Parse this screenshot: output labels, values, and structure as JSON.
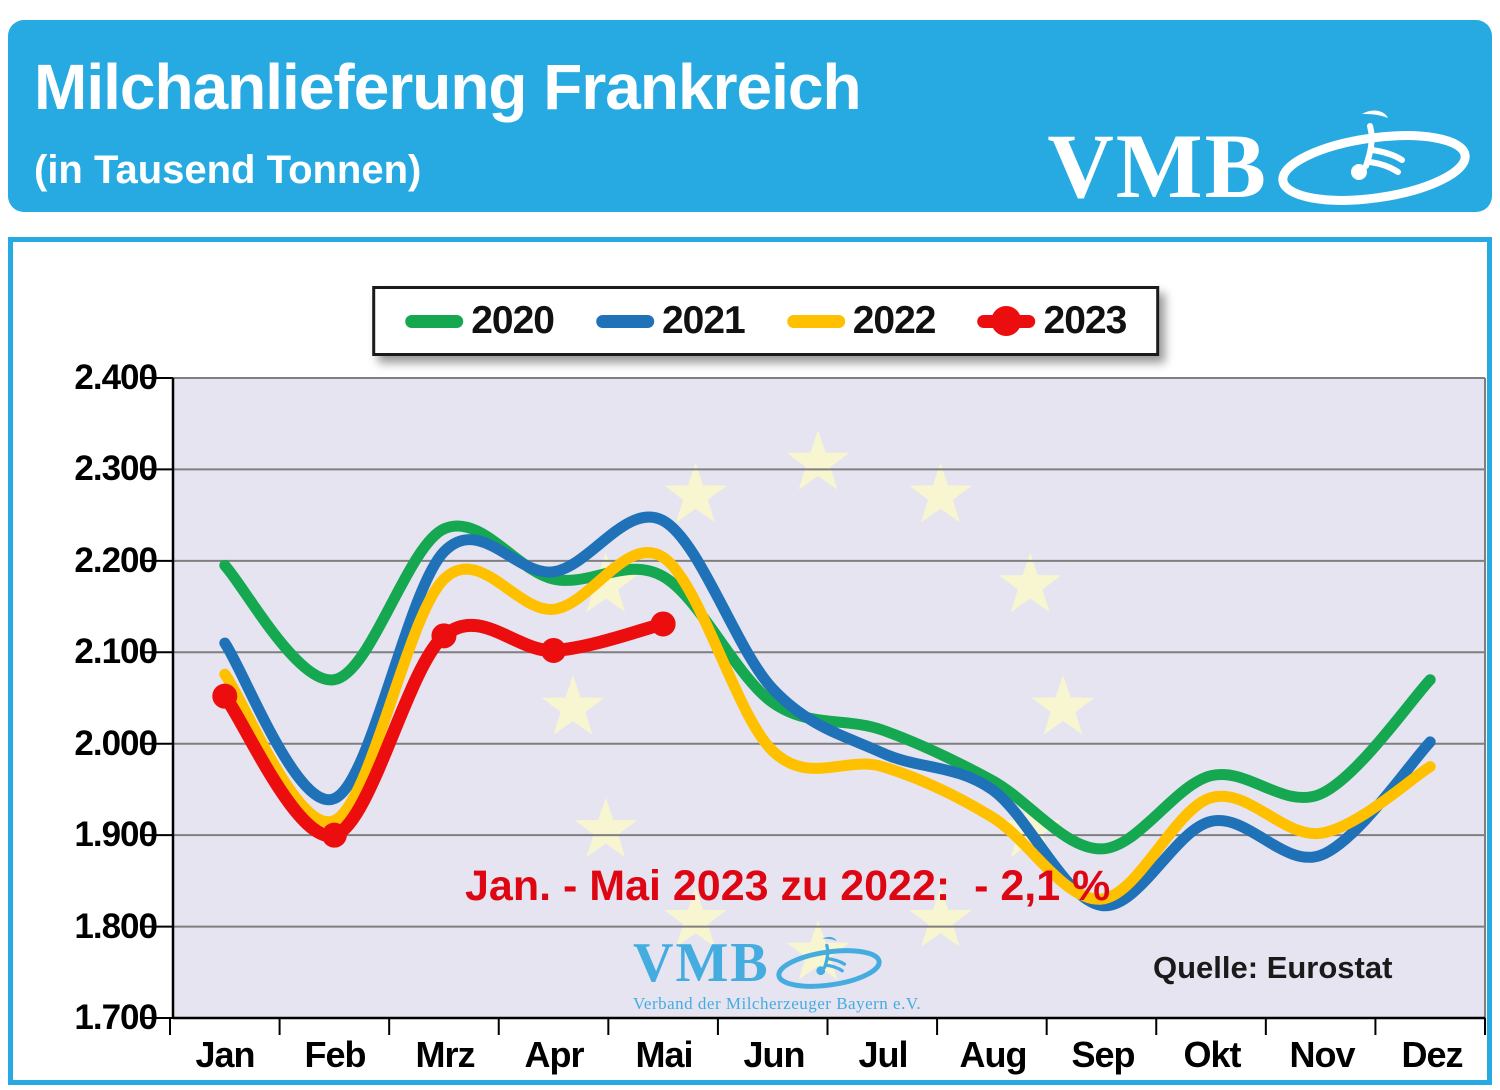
{
  "header": {
    "title": "Milchanlieferung Frankreich",
    "subtitle": "(in Tausend Tonnen)",
    "logo_text": "VMB"
  },
  "chart": {
    "y_labels": [
      "2.400",
      "2.300",
      "2.200",
      "2.100",
      "2.000",
      "1.900",
      "1.800",
      "1.700"
    ],
    "months": [
      "Jan",
      "Feb",
      "Mrz",
      "Apr",
      "Mai",
      "Jun",
      "Jul",
      "Aug",
      "Sep",
      "Okt",
      "Nov",
      "Dez"
    ],
    "legend": [
      {
        "label": "2020",
        "color": "#15A850"
      },
      {
        "label": "2021",
        "color": "#1F72B8"
      },
      {
        "label": "2022",
        "color": "#FFC000"
      },
      {
        "label": "2023",
        "color": "#EC0E0E"
      }
    ],
    "annotation": "Jan. - Mai 2023 zu 2022:  - 2,1 %",
    "source": "Quelle: Eurostat",
    "watermark": {
      "name": "VMB",
      "subtitle": "Verband der Milcherzeuger Bayern e.V."
    },
    "colors": {
      "header_blue": "#27AAE1",
      "plot_background": "#E5E4F0",
      "star_yellow": "#F9F6CF",
      "gridline": "#7F7F7F",
      "annotation_red": "#DF0613",
      "watermark_blue": "#45ACE0"
    }
  },
  "chart_data": {
    "type": "line",
    "title": "Milchanlieferung Frankreich (in Tausend Tonnen)",
    "xlabel": "",
    "ylabel": "Tausend Tonnen",
    "ylim": [
      1700,
      2400
    ],
    "ytick_step": 100,
    "grid": true,
    "legend_position": "top",
    "categories": [
      "Jan",
      "Feb",
      "Mrz",
      "Apr",
      "Mai",
      "Jun",
      "Jul",
      "Aug",
      "Sep",
      "Okt",
      "Nov",
      "Dez"
    ],
    "series": [
      {
        "name": "2020",
        "color": "#15A850",
        "markers": false,
        "values": [
          2195,
          2070,
          2235,
          2180,
          2183,
          2045,
          2015,
          1960,
          1885,
          1965,
          1945,
          2070
        ]
      },
      {
        "name": "2021",
        "color": "#1F72B8",
        "markers": false,
        "values": [
          2110,
          1940,
          2210,
          2188,
          2244,
          2060,
          1990,
          1950,
          1823,
          1915,
          1878,
          2002
        ]
      },
      {
        "name": "2022",
        "color": "#FFC000",
        "markers": false,
        "values": [
          2076,
          1916,
          2180,
          2147,
          2204,
          1992,
          1975,
          1920,
          1830,
          1941,
          1902,
          1975
        ]
      },
      {
        "name": "2023",
        "color": "#EC0E0E",
        "markers": true,
        "values": [
          2052,
          1900,
          2118,
          2102,
          2131
        ]
      }
    ],
    "annotation": "Jan. - Mai 2023 zu 2022:  - 2,1 %",
    "source": "Quelle: Eurostat"
  }
}
